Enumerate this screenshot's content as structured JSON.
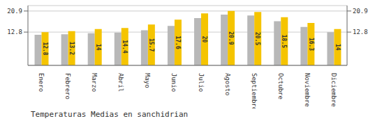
{
  "chart_data": {
    "type": "bar",
    "title": "Temperaturas Medias en sanchidrian",
    "categories": [
      "Enero",
      "Febrero",
      "Marzo",
      "Abril",
      "Mayo",
      "Junio",
      "Julio",
      "Agosto",
      "Septiembre",
      "Octubre",
      "Noviembre",
      "Diciembre"
    ],
    "series": [
      {
        "color": "#B8B8B8",
        "values": [
          11.8,
          12.0,
          12.4,
          12.6,
          13.5,
          15.2,
          18.2,
          19.5,
          19.2,
          17.0,
          14.8,
          12.8
        ]
      },
      {
        "color": "#F5C400",
        "values": [
          12.8,
          13.2,
          14.0,
          14.4,
          15.7,
          17.6,
          20.0,
          20.9,
          20.5,
          18.5,
          16.3,
          14.0
        ],
        "data_labels": true
      }
    ],
    "ylim": [
      0,
      23.0
    ],
    "yticks": [
      12.8,
      20.9
    ],
    "grid": true
  }
}
